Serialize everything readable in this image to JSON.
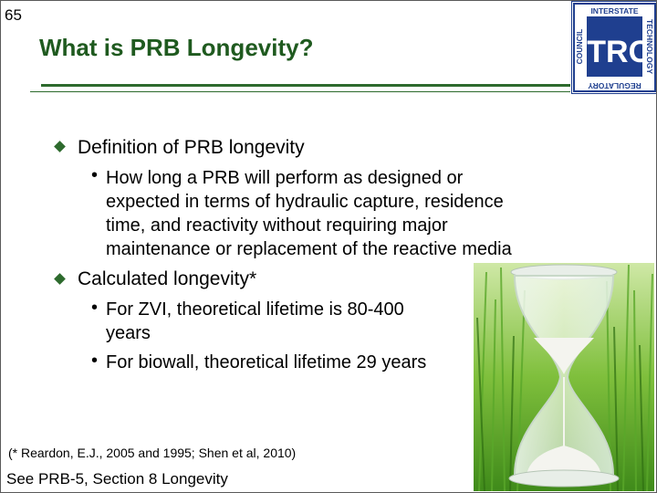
{
  "slide": {
    "number": "65",
    "title": "What is PRB Longevity?",
    "logo_text": {
      "center": "ITRC",
      "top": "INTERSTATE",
      "right": "TECHNOLOGY",
      "bottom": "REGULATORY",
      "left": "COUNCIL"
    },
    "bullets": [
      {
        "text": "Definition of PRB longevity",
        "subs": [
          {
            "lines": [
              "How long a PRB will perform as designed or",
              "expected in terms of hydraulic capture, residence",
              "time, and reactivity without requiring major",
              "maintenance or replacement of the reactive media"
            ]
          }
        ]
      },
      {
        "text": "Calculated longevity*",
        "subs": [
          {
            "lines": [
              "For ZVI, theoretical lifetime is 80-400",
              "years"
            ]
          },
          {
            "lines": [
              "For biowall, theoretical lifetime 29 years"
            ]
          }
        ]
      }
    ],
    "reference": "(* Reardon, E.J., 2005 and 1995; Shen et al, 2010)",
    "see_also": "See PRB-5, Section 8 Longevity",
    "image_desc": "hourglass-in-grass",
    "colors": {
      "title": "#1f5a1f",
      "rule": "#2d6a2d",
      "logo_blue": "#1f3f8f"
    }
  }
}
